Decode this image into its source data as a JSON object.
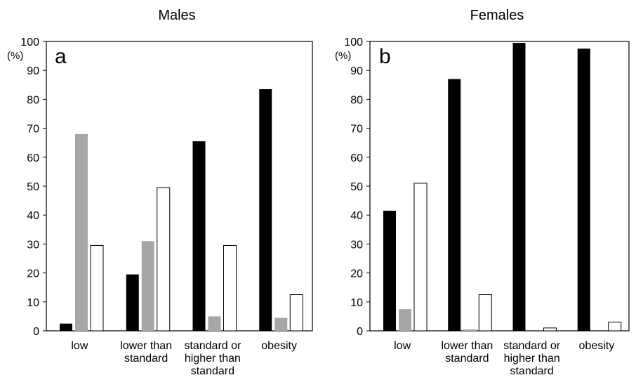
{
  "chart_data": [
    {
      "type": "bar",
      "title": "Males",
      "panel_label": "a",
      "y_unit": "(%)",
      "ylim": [
        0,
        100
      ],
      "yticks": [
        0,
        10,
        20,
        30,
        40,
        50,
        60,
        70,
        80,
        90,
        100
      ],
      "categories": [
        [
          "low"
        ],
        [
          "lower than",
          "standard"
        ],
        [
          "standard or",
          "higher than",
          "standard"
        ],
        [
          "obesity"
        ]
      ],
      "series": [
        {
          "color": "#000000",
          "values": [
            2.5,
            19.5,
            65.5,
            83.5
          ]
        },
        {
          "color": "#a6a6a6",
          "values": [
            68,
            31,
            5,
            4.5
          ]
        },
        {
          "color": "#ffffff",
          "values": [
            29.5,
            49.5,
            29.5,
            12.5
          ]
        }
      ],
      "grid": false,
      "legend": "none"
    },
    {
      "type": "bar",
      "title": "Females",
      "panel_label": "b",
      "y_unit": "(%)",
      "ylim": [
        0,
        100
      ],
      "yticks": [
        0,
        10,
        20,
        30,
        40,
        50,
        60,
        70,
        80,
        90,
        100
      ],
      "categories": [
        [
          "low"
        ],
        [
          "lower than",
          "standard"
        ],
        [
          "standard or",
          "higher than",
          "standard"
        ],
        [
          "obesity"
        ]
      ],
      "series": [
        {
          "color": "#000000",
          "values": [
            41.5,
            87,
            99.5,
            97.5
          ]
        },
        {
          "color": "#a6a6a6",
          "values": [
            7.5,
            0.5,
            0,
            0
          ]
        },
        {
          "color": "#ffffff",
          "values": [
            51,
            12.5,
            1,
            3
          ]
        }
      ],
      "grid": false,
      "legend": "none"
    }
  ]
}
